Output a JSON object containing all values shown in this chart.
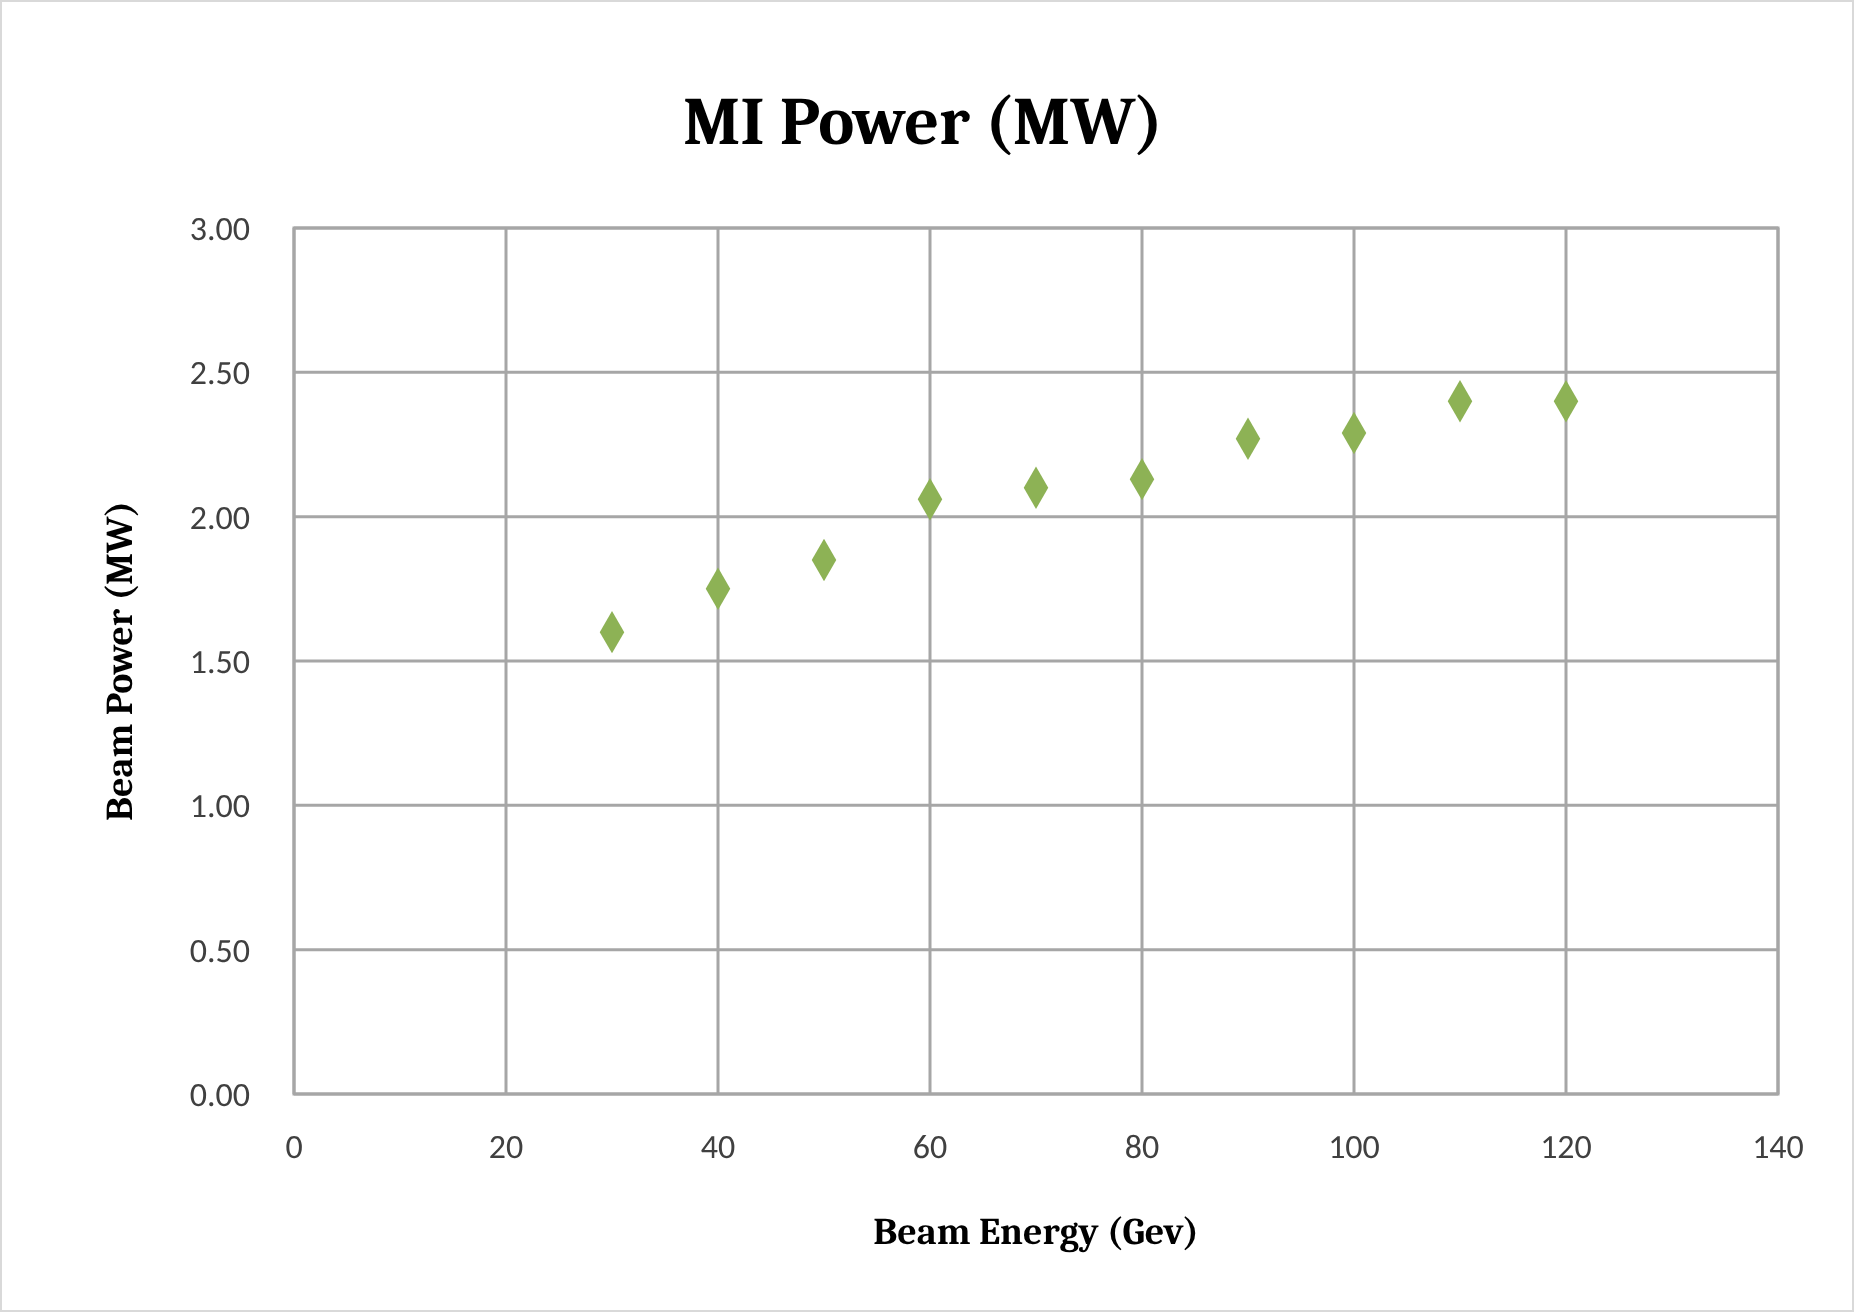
{
  "chart_data": {
    "type": "scatter",
    "title": "MI Power (MW)",
    "xlabel": "Beam Energy (Gev)",
    "ylabel": "Beam Power (MW)",
    "x": [
      30,
      40,
      50,
      60,
      70,
      80,
      90,
      100,
      110,
      120
    ],
    "series": [
      {
        "color": "#8db255",
        "values": [
          1.6,
          1.75,
          1.85,
          2.06,
          2.1,
          2.13,
          2.27,
          2.29,
          2.4,
          2.4
        ]
      }
    ],
    "xlim": [
      0,
      140
    ],
    "xticks": [
      0,
      20,
      40,
      60,
      80,
      100,
      120,
      140
    ],
    "ylim": [
      0,
      3
    ],
    "yticks": [
      {
        "value": 0,
        "label": "0.00"
      },
      {
        "value": 0.5,
        "label": "0.50"
      },
      {
        "value": 1,
        "label": "1.00"
      },
      {
        "value": 1.5,
        "label": "1.50"
      },
      {
        "value": 2,
        "label": "2.00"
      },
      {
        "value": 2.5,
        "label": "2.50"
      },
      {
        "value": 3,
        "label": "3.00"
      }
    ],
    "grid": true,
    "marker": "diamond"
  }
}
